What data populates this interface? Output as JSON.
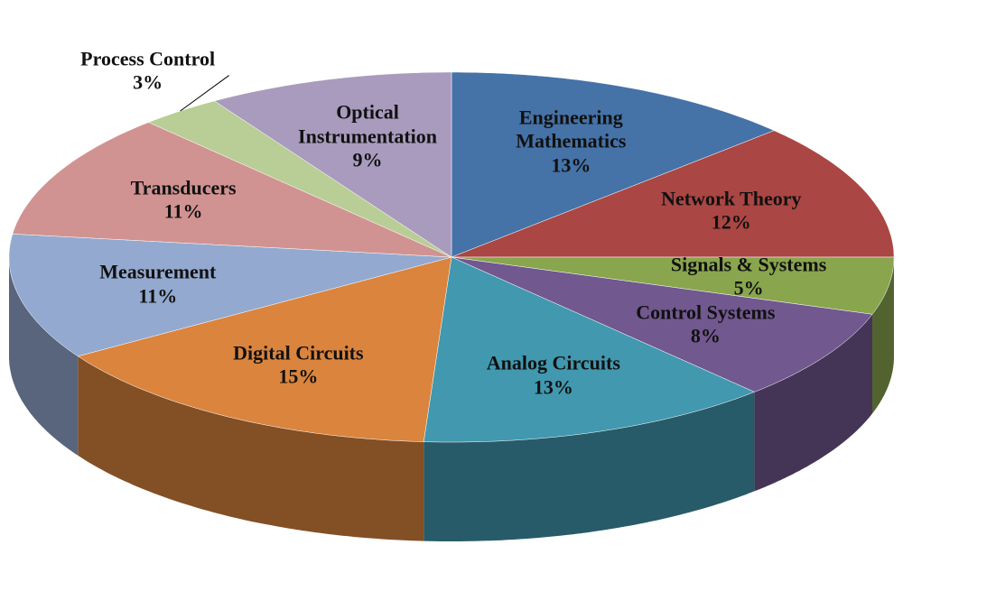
{
  "chart_data": {
    "type": "pie",
    "categories": [
      "Engineering Mathematics",
      "Network Theory",
      "Signals & Systems",
      "Control Systems",
      "Analog Circuits",
      "Digital Circuits",
      "Measurement",
      "Transducers",
      "Process Control",
      "Optical Instrumentation"
    ],
    "values": [
      13,
      12,
      5,
      8,
      13,
      15,
      11,
      11,
      3,
      9
    ],
    "value_labels": [
      "13%",
      "12%",
      "5%",
      "8%",
      "13%",
      "15%",
      "11%",
      "11%",
      "3%",
      "9%"
    ],
    "colors": [
      "#4572a7",
      "#aa4643",
      "#89a54e",
      "#71588f",
      "#4198af",
      "#db843d",
      "#93a9cf",
      "#d19392",
      "#b9cd96",
      "#a99bbd"
    ]
  }
}
